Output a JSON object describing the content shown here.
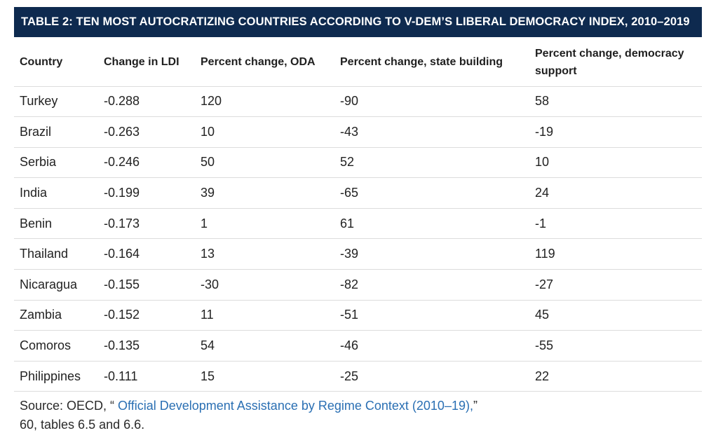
{
  "title": "TABLE 2: TEN MOST AUTOCRATIZING COUNTRIES ACCORDING TO V-DEM’S LIBERAL DEMOCRACY INDEX, 2010–2019",
  "columns": [
    "Country",
    "Change in LDI",
    "Percent change, ODA",
    "Percent change, state building",
    "Percent change, democracy support"
  ],
  "rows": [
    [
      "Turkey",
      "-0.288",
      "120",
      "-90",
      "58"
    ],
    [
      "Brazil",
      "-0.263",
      "10",
      "-43",
      "-19"
    ],
    [
      "Serbia",
      "-0.246",
      "50",
      "52",
      "10"
    ],
    [
      "India",
      "-0.199",
      "39",
      "-65",
      "24"
    ],
    [
      "Benin",
      "-0.173",
      "1",
      "61",
      "-1"
    ],
    [
      "Thailand",
      "-0.164",
      "13",
      "-39",
      "119"
    ],
    [
      "Nicaragua",
      "-0.155",
      "-30",
      "-82",
      "-27"
    ],
    [
      "Zambia",
      "-0.152",
      "11",
      "-51",
      "45"
    ],
    [
      "Comoros",
      "-0.135",
      "54",
      "-46",
      "-55"
    ],
    [
      "Philippines",
      "-0.111",
      "15",
      "-25",
      "22"
    ]
  ],
  "source": {
    "prefix": "Source: OECD, “ ",
    "link_text": "Official Development Assistance by Regime Context (2010–19),",
    "suffix": "”",
    "line2": "60, tables 6.5 and 6.6."
  },
  "colors": {
    "title_bg": "#0e2a4f",
    "title_text": "#ffffff",
    "link": "#2a6fb3",
    "rule": "#dcdcdc"
  }
}
